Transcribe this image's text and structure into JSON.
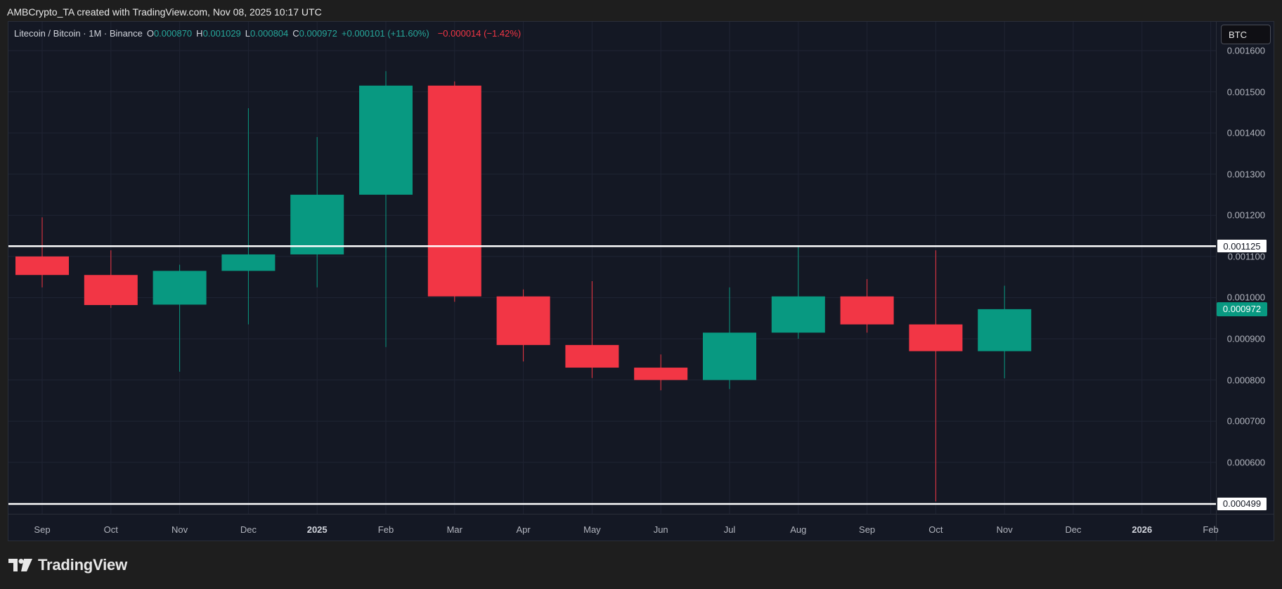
{
  "caption": "AMBCrypto_TA created with TradingView.com, Nov 08, 2025 10:17 UTC",
  "legend": {
    "symbol": "Litecoin / Bitcoin · 1M · Binance",
    "o_label": "O",
    "o_value": "0.000870",
    "h_label": "H",
    "h_value": "0.001029",
    "l_label": "L",
    "l_value": "0.000804",
    "c_label": "C",
    "c_value": "0.000972",
    "change_pos": "+0.000101 (+11.60%)",
    "change_neg": "−0.000014 (−1.42%)"
  },
  "currency_button": "BTC",
  "brand": "TradingView",
  "colors": {
    "up": "#089981",
    "down": "#f23645",
    "background": "#141824",
    "grid": "#1f2433",
    "level_line": "#ffffff"
  },
  "chart_data": {
    "type": "candlestick",
    "interval": "1M",
    "ylim": [
      0.000475,
      0.00167
    ],
    "y_ticks": [
      "0.001600",
      "0.001500",
      "0.001400",
      "0.001300",
      "0.001200",
      "0.001100",
      "0.001000",
      "0.000900",
      "0.000800",
      "0.000700",
      "0.000600"
    ],
    "x_labels": [
      {
        "label": "Sep",
        "bold": false
      },
      {
        "label": "Oct",
        "bold": false
      },
      {
        "label": "Nov",
        "bold": false
      },
      {
        "label": "Dec",
        "bold": false
      },
      {
        "label": "2025",
        "bold": true
      },
      {
        "label": "Feb",
        "bold": false
      },
      {
        "label": "Mar",
        "bold": false
      },
      {
        "label": "Apr",
        "bold": false
      },
      {
        "label": "May",
        "bold": false
      },
      {
        "label": "Jun",
        "bold": false
      },
      {
        "label": "Jul",
        "bold": false
      },
      {
        "label": "Aug",
        "bold": false
      },
      {
        "label": "Sep",
        "bold": false
      },
      {
        "label": "Oct",
        "bold": false
      },
      {
        "label": "Nov",
        "bold": false
      },
      {
        "label": "Dec",
        "bold": false
      },
      {
        "label": "2026",
        "bold": true
      },
      {
        "label": "Feb",
        "bold": false
      }
    ],
    "candles": [
      {
        "month": "Sep 2024",
        "open": 0.0011,
        "high": 0.001195,
        "low": 0.001025,
        "close": 0.001055
      },
      {
        "month": "Oct 2024",
        "open": 0.001055,
        "high": 0.001115,
        "low": 0.000975,
        "close": 0.000982
      },
      {
        "month": "Nov 2024",
        "open": 0.000983,
        "high": 0.00108,
        "low": 0.00082,
        "close": 0.001065
      },
      {
        "month": "Dec 2024",
        "open": 0.001065,
        "high": 0.00146,
        "low": 0.000935,
        "close": 0.001105
      },
      {
        "month": "Jan 2025",
        "open": 0.001105,
        "high": 0.00139,
        "low": 0.001025,
        "close": 0.00125
      },
      {
        "month": "Feb 2025",
        "open": 0.00125,
        "high": 0.00155,
        "low": 0.00088,
        "close": 0.001515
      },
      {
        "month": "Mar 2025",
        "open": 0.001515,
        "high": 0.001525,
        "low": 0.00099,
        "close": 0.001003
      },
      {
        "month": "Apr 2025",
        "open": 0.001003,
        "high": 0.00102,
        "low": 0.000845,
        "close": 0.000885
      },
      {
        "month": "May 2025",
        "open": 0.000885,
        "high": 0.00104,
        "low": 0.000805,
        "close": 0.00083
      },
      {
        "month": "Jun 2025",
        "open": 0.00083,
        "high": 0.000862,
        "low": 0.000775,
        "close": 0.0008
      },
      {
        "month": "Jul 2025",
        "open": 0.0008,
        "high": 0.001025,
        "low": 0.000778,
        "close": 0.000915
      },
      {
        "month": "Aug 2025",
        "open": 0.000915,
        "high": 0.001125,
        "low": 0.0009,
        "close": 0.001003
      },
      {
        "month": "Sep 2025",
        "open": 0.001003,
        "high": 0.001045,
        "low": 0.000915,
        "close": 0.000935
      },
      {
        "month": "Oct 2025",
        "open": 0.000935,
        "high": 0.001115,
        "low": 0.000505,
        "close": 0.00087
      },
      {
        "month": "Nov 2025",
        "open": 0.00087,
        "high": 0.001029,
        "low": 0.000804,
        "close": 0.000972
      }
    ],
    "horizontal_lines": [
      {
        "price": 0.001125,
        "label": "0.001125"
      },
      {
        "price": 0.000499,
        "label": "0.000499"
      }
    ],
    "last_price": {
      "price": 0.000972,
      "label": "0.000972"
    }
  }
}
